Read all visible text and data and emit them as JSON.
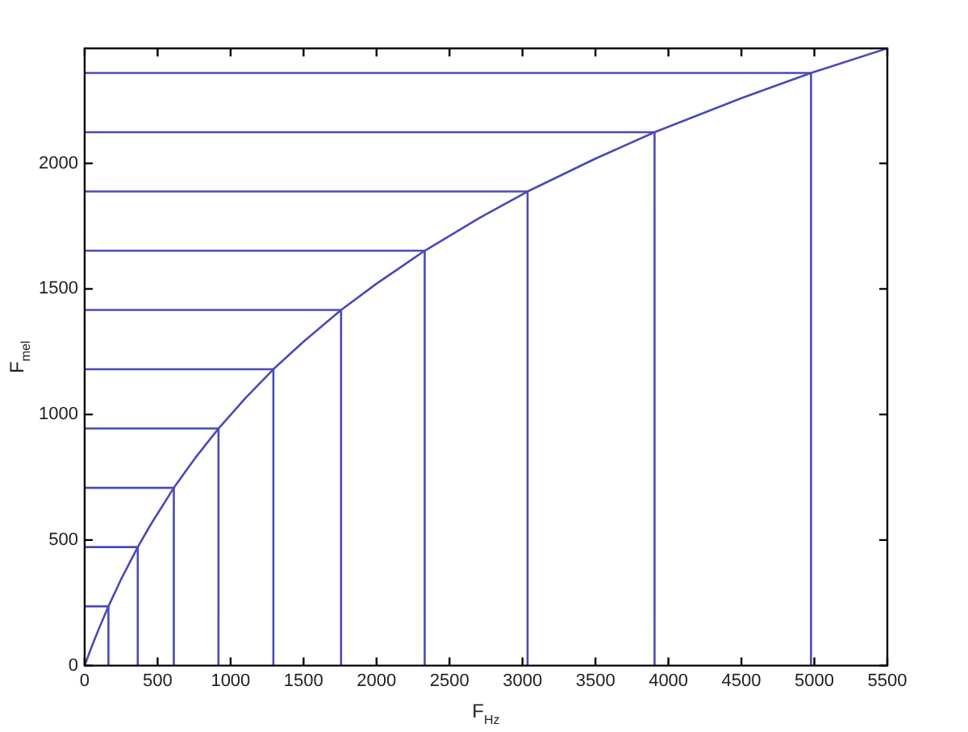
{
  "chart_data": {
    "type": "line",
    "xlabel": "F$_{Hz}$",
    "ylabel": "F$_{mel}$",
    "xlim": [
      0,
      5500
    ],
    "xticks": [
      0,
      500,
      1000,
      1500,
      2000,
      2500,
      3000,
      3500,
      4000,
      4500,
      5000,
      5500
    ],
    "ylim": [
      0,
      2458
    ],
    "yticks": [
      0,
      500,
      1000,
      1500,
      2000
    ],
    "grid": false,
    "legend": false,
    "marker": "none",
    "line_style": "solid",
    "series": [
      {
        "color": "#4a4ab8",
        "x": [
          0,
          50,
          100,
          163,
          250,
          364,
          450,
          611,
          750,
          917,
          1100,
          1293,
          1500,
          1757,
          2000,
          2330,
          2700,
          3035,
          3500,
          3905,
          4500,
          4977,
          5500
        ],
        "values": [
          0,
          78,
          150,
          236,
          344,
          472,
          559,
          708,
          821,
          944,
          1064,
          1180,
          1290,
          1416,
          1521,
          1652,
          1781,
          1888,
          2019,
          2124,
          2260,
          2360,
          2458
        ]
      },
      {
        "color": "#4a4ab8",
        "x": [
          0,
          163,
          163
        ],
        "values": [
          236,
          236,
          0
        ]
      },
      {
        "color": "#4a4ab8",
        "x": [
          0,
          364,
          364
        ],
        "values": [
          472,
          472,
          0
        ]
      },
      {
        "color": "#4a4ab8",
        "x": [
          0,
          611,
          611
        ],
        "values": [
          708,
          708,
          0
        ]
      },
      {
        "color": "#4a4ab8",
        "x": [
          0,
          917,
          917
        ],
        "values": [
          944,
          944,
          0
        ]
      },
      {
        "color": "#4a4ab8",
        "x": [
          0,
          1293,
          1293
        ],
        "values": [
          1180,
          1180,
          0
        ]
      },
      {
        "color": "#4a4ab8",
        "x": [
          0,
          1757,
          1757
        ],
        "values": [
          1416,
          1416,
          0
        ]
      },
      {
        "color": "#4a4ab8",
        "x": [
          0,
          2330,
          2330
        ],
        "values": [
          1652,
          1652,
          0
        ]
      },
      {
        "color": "#4a4ab8",
        "x": [
          0,
          3035,
          3035
        ],
        "values": [
          1888,
          1888,
          0
        ]
      },
      {
        "color": "#4a4ab8",
        "x": [
          0,
          3905,
          3905
        ],
        "values": [
          2124,
          2124,
          0
        ]
      },
      {
        "color": "#4a4ab8",
        "x": [
          0,
          4977,
          4977
        ],
        "values": [
          2360,
          2360,
          0
        ]
      }
    ]
  }
}
